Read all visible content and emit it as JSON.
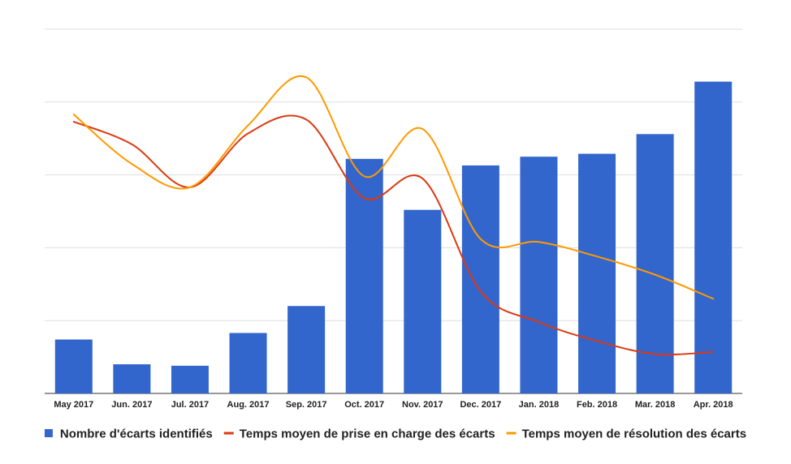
{
  "chart_data": {
    "type": "bar",
    "categories": [
      "May 2017",
      "Jun. 2017",
      "Jul. 2017",
      "Aug. 2017",
      "Sep. 2017",
      "Oct. 2017",
      "Nov. 2017",
      "Dec. 2017",
      "Jan. 2018",
      "Feb. 2018",
      "Mar. 2018",
      "Apr. 2018"
    ],
    "ylim": [
      0,
      5
    ],
    "gridlines": true,
    "legend_position": "bottom",
    "series": [
      {
        "name": "Nombre d'écarts identifiés",
        "type": "bar",
        "color": "#3366cc",
        "values": [
          0.74,
          0.4,
          0.38,
          0.83,
          1.2,
          3.22,
          2.52,
          3.13,
          3.25,
          3.29,
          3.56,
          4.28
        ]
      },
      {
        "name": "Temps moyen de prise en charge des écarts",
        "type": "line",
        "color": "#dc3912",
        "values": [
          3.73,
          3.42,
          2.83,
          3.57,
          3.76,
          2.68,
          2.95,
          1.4,
          0.98,
          0.72,
          0.54,
          0.57
        ]
      },
      {
        "name": "Temps moyen de résolution des écarts",
        "type": "line",
        "color": "#ff9900",
        "values": [
          3.83,
          3.15,
          2.83,
          3.68,
          4.34,
          2.98,
          3.63,
          2.12,
          2.08,
          1.88,
          1.63,
          1.3
        ]
      }
    ]
  }
}
